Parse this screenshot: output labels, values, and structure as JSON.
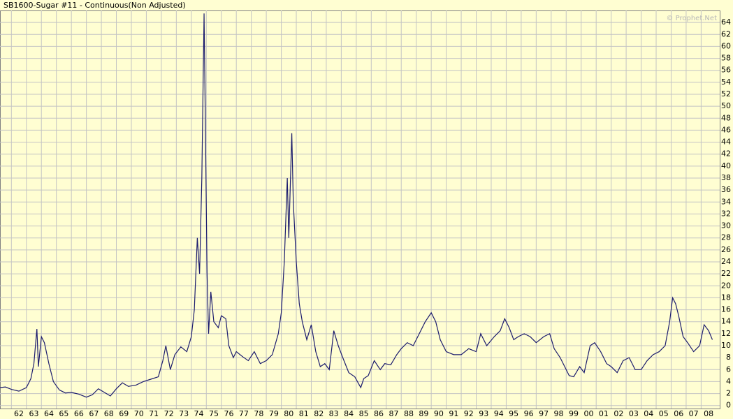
{
  "chart_data": {
    "type": "line",
    "title": "SB1600-Sugar #11 - Continuous(Non Adjusted)",
    "watermark": "© Prophet.Net",
    "color": "#1c1c6e",
    "grid": true,
    "x": [
      1961.25,
      1961.6,
      1962.0,
      1962.5,
      1963.0,
      1963.3,
      1963.5,
      1963.7,
      1963.8,
      1964.0,
      1964.2,
      1964.5,
      1964.8,
      1965.2,
      1965.6,
      1966.0,
      1966.5,
      1967.0,
      1967.4,
      1967.8,
      1968.2,
      1968.6,
      1969.0,
      1969.4,
      1969.8,
      1970.3,
      1970.8,
      1971.3,
      1971.8,
      1972.1,
      1972.3,
      1972.6,
      1972.9,
      1973.3,
      1973.7,
      1974.0,
      1974.2,
      1974.4,
      1974.55,
      1974.7,
      1974.85,
      1974.95,
      1975.05,
      1975.15,
      1975.3,
      1975.5,
      1975.8,
      1976.0,
      1976.3,
      1976.5,
      1976.8,
      1977.0,
      1977.4,
      1977.8,
      1978.2,
      1978.6,
      1979.0,
      1979.4,
      1979.8,
      1980.0,
      1980.2,
      1980.4,
      1980.5,
      1980.7,
      1980.8,
      1981.0,
      1981.2,
      1981.4,
      1981.7,
      1982.0,
      1982.3,
      1982.6,
      1982.9,
      1983.2,
      1983.5,
      1983.8,
      1984.1,
      1984.5,
      1984.9,
      1985.3,
      1985.5,
      1985.8,
      1986.2,
      1986.6,
      1986.9,
      1987.3,
      1987.7,
      1988.0,
      1988.4,
      1988.8,
      1989.2,
      1989.6,
      1990.0,
      1990.3,
      1990.6,
      1991.0,
      1991.5,
      1992.0,
      1992.5,
      1993.0,
      1993.3,
      1993.7,
      1994.2,
      1994.6,
      1994.9,
      1995.2,
      1995.5,
      1995.8,
      1996.2,
      1996.6,
      1997.0,
      1997.5,
      1997.9,
      1998.2,
      1998.6,
      1998.9,
      1999.2,
      1999.5,
      1999.9,
      2000.2,
      2000.6,
      2000.9,
      2001.3,
      2001.7,
      2002.0,
      2002.4,
      2002.8,
      2003.2,
      2003.6,
      2004.0,
      2004.4,
      2004.8,
      2005.2,
      2005.6,
      2005.9,
      2006.1,
      2006.3,
      2006.5,
      2006.8,
      2007.1,
      2007.5,
      2007.9,
      2008.2,
      2008.5,
      2008.75
    ],
    "values": [
      3.0,
      3.1,
      2.7,
      2.4,
      3.0,
      4.5,
      7.0,
      12.8,
      6.5,
      11.5,
      10.5,
      7.0,
      4.0,
      2.6,
      2.1,
      2.2,
      1.9,
      1.4,
      1.8,
      2.8,
      2.2,
      1.6,
      2.8,
      3.8,
      3.2,
      3.4,
      4.0,
      4.4,
      4.8,
      7.5,
      10.0,
      6.0,
      8.5,
      9.8,
      9.0,
      11.5,
      16.0,
      28.0,
      22.0,
      38.0,
      65.5,
      44.0,
      22.0,
      12.0,
      19.0,
      14.0,
      13.0,
      15.0,
      14.5,
      10.0,
      8.0,
      9.0,
      8.2,
      7.5,
      9.0,
      7.0,
      7.5,
      8.5,
      12.0,
      15.5,
      24.0,
      38.0,
      28.0,
      45.5,
      34.0,
      24.0,
      17.0,
      14.0,
      11.0,
      13.5,
      9.0,
      6.5,
      7.0,
      6.0,
      12.5,
      10.0,
      8.0,
      5.5,
      4.8,
      3.0,
      4.5,
      5.0,
      7.5,
      6.0,
      7.0,
      6.8,
      8.5,
      9.5,
      10.5,
      10.0,
      12.0,
      14.0,
      15.5,
      14.0,
      11.0,
      9.0,
      8.5,
      8.5,
      9.5,
      9.0,
      12.0,
      10.0,
      11.5,
      12.5,
      14.5,
      13.0,
      11.0,
      11.5,
      12.0,
      11.5,
      10.5,
      11.5,
      12.0,
      9.5,
      8.0,
      6.5,
      5.0,
      4.8,
      6.5,
      5.5,
      10.0,
      10.5,
      9.0,
      7.0,
      6.5,
      5.5,
      7.5,
      8.0,
      6.0,
      6.0,
      7.5,
      8.5,
      9.0,
      10.0,
      14.0,
      18.0,
      17.0,
      15.0,
      11.5,
      10.5,
      9.0,
      10.0,
      13.5,
      12.5,
      11.0
    ],
    "xlim": [
      1961.24,
      2009.24
    ],
    "ylim": [
      -0.5,
      66
    ],
    "yticks": [
      0,
      2,
      4,
      6,
      8,
      10,
      12,
      14,
      16,
      18,
      20,
      22,
      24,
      26,
      28,
      30,
      32,
      34,
      36,
      38,
      40,
      42,
      44,
      46,
      48,
      50,
      52,
      54,
      56,
      58,
      60,
      62,
      64
    ],
    "xticks": [
      {
        "value": 1962,
        "label": "62"
      },
      {
        "value": 1963,
        "label": "63"
      },
      {
        "value": 1964,
        "label": "64"
      },
      {
        "value": 1965,
        "label": "65"
      },
      {
        "value": 1966,
        "label": "66"
      },
      {
        "value": 1967,
        "label": "67"
      },
      {
        "value": 1968,
        "label": "68"
      },
      {
        "value": 1969,
        "label": "69"
      },
      {
        "value": 1970,
        "label": "70"
      },
      {
        "value": 1971,
        "label": "71"
      },
      {
        "value": 1972,
        "label": "72"
      },
      {
        "value": 1973,
        "label": "73"
      },
      {
        "value": 1974,
        "label": "74"
      },
      {
        "value": 1975,
        "label": "75"
      },
      {
        "value": 1976,
        "label": "76"
      },
      {
        "value": 1977,
        "label": "77"
      },
      {
        "value": 1978,
        "label": "78"
      },
      {
        "value": 1979,
        "label": "79"
      },
      {
        "value": 1980,
        "label": "80"
      },
      {
        "value": 1981,
        "label": "81"
      },
      {
        "value": 1982,
        "label": "82"
      },
      {
        "value": 1983,
        "label": "83"
      },
      {
        "value": 1984,
        "label": "84"
      },
      {
        "value": 1985,
        "label": "85"
      },
      {
        "value": 1986,
        "label": "86"
      },
      {
        "value": 1987,
        "label": "87"
      },
      {
        "value": 1988,
        "label": "88"
      },
      {
        "value": 1989,
        "label": "89"
      },
      {
        "value": 1990,
        "label": "90"
      },
      {
        "value": 1991,
        "label": "91"
      },
      {
        "value": 1992,
        "label": "92"
      },
      {
        "value": 1993,
        "label": "93"
      },
      {
        "value": 1994,
        "label": "94"
      },
      {
        "value": 1995,
        "label": "95"
      },
      {
        "value": 1996,
        "label": "96"
      },
      {
        "value": 1997,
        "label": "97"
      },
      {
        "value": 1998,
        "label": "98"
      },
      {
        "value": 1999,
        "label": "99"
      },
      {
        "value": 2000,
        "label": "00"
      },
      {
        "value": 2001,
        "label": "01"
      },
      {
        "value": 2002,
        "label": "02"
      },
      {
        "value": 2003,
        "label": "03"
      },
      {
        "value": 2004,
        "label": "04"
      },
      {
        "value": 2005,
        "label": "05"
      },
      {
        "value": 2006,
        "label": "06"
      },
      {
        "value": 2007,
        "label": "07"
      },
      {
        "value": 2008,
        "label": "08"
      }
    ]
  }
}
